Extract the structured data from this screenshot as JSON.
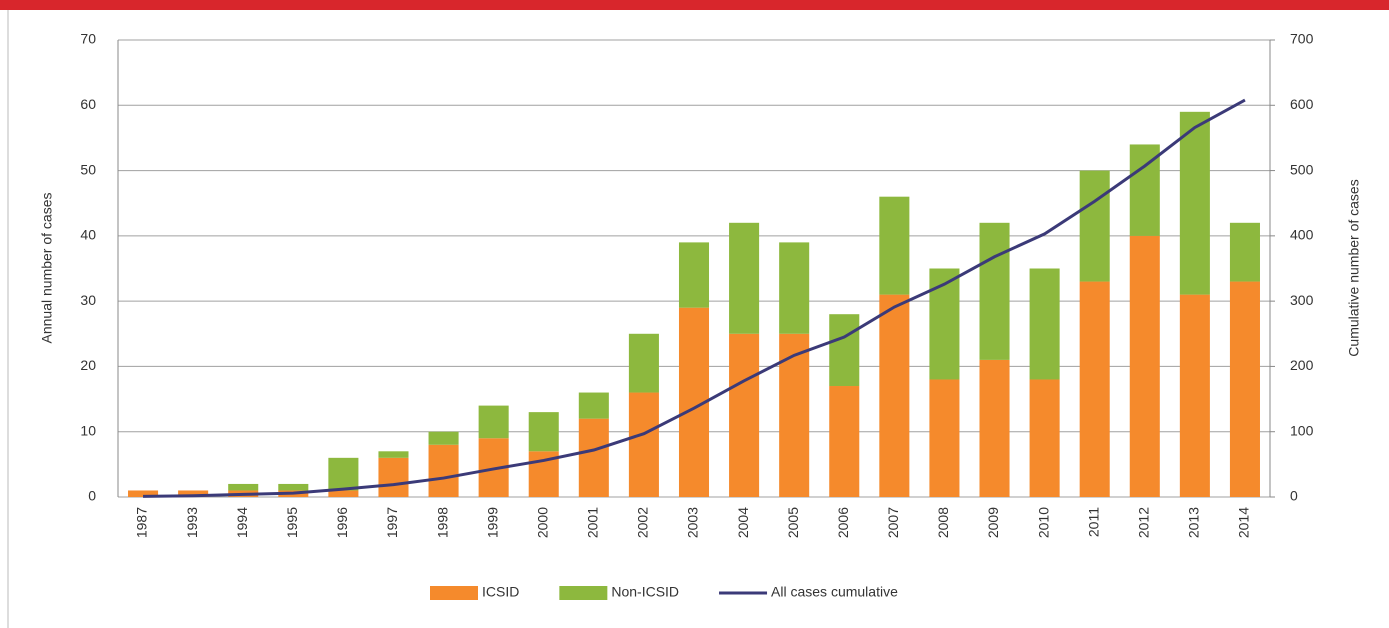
{
  "chart_data": {
    "type": "bar",
    "stacked": true,
    "categories": [
      "1987",
      "1993",
      "1994",
      "1995",
      "1996",
      "1997",
      "1998",
      "1999",
      "2000",
      "2001",
      "2002",
      "2003",
      "2004",
      "2005",
      "2006",
      "2007",
      "2008",
      "2009",
      "2010",
      "2011",
      "2012",
      "2013",
      "2014"
    ],
    "series": [
      {
        "name": "ICSID",
        "color": "#f58a2c",
        "values": [
          1,
          1,
          1,
          1,
          1,
          6,
          8,
          9,
          7,
          12,
          16,
          29,
          25,
          25,
          17,
          31,
          18,
          21,
          18,
          33,
          40,
          31,
          33
        ]
      },
      {
        "name": "Non-ICSID",
        "color": "#8db83e",
        "values": [
          0,
          0,
          1,
          1,
          5,
          1,
          2,
          5,
          6,
          4,
          9,
          10,
          17,
          14,
          11,
          15,
          17,
          21,
          17,
          17,
          14,
          28,
          9
        ]
      },
      {
        "name": "All cases cumulative",
        "color": "#3b3a78",
        "type": "line",
        "axis": "y2",
        "values": [
          1,
          2,
          4,
          6,
          12,
          19,
          29,
          43,
          56,
          72,
          97,
          136,
          178,
          217,
          245,
          291,
          326,
          368,
          403,
          453,
          507,
          566,
          608
        ]
      }
    ],
    "ylabel": "Annual number of cases",
    "y2label": "Cumulative number of cases",
    "ylim": [
      0,
      70
    ],
    "yticks": [
      0,
      10,
      20,
      30,
      40,
      50,
      60,
      70
    ],
    "y2lim": [
      0,
      700
    ],
    "y2ticks": [
      0,
      100,
      200,
      300,
      400,
      500,
      600,
      700
    ],
    "grid": true,
    "legend": "bottom"
  }
}
